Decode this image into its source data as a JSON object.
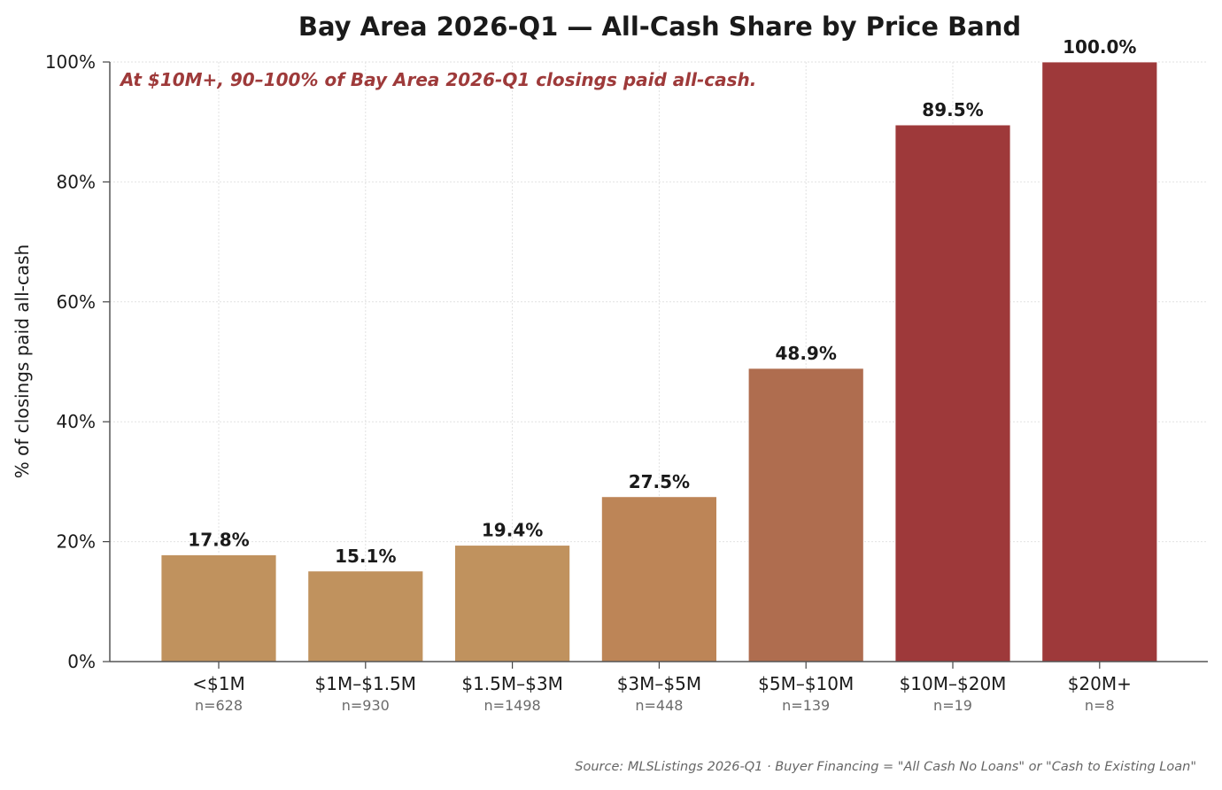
{
  "chart_data": {
    "type": "bar",
    "title": "Bay Area 2026-Q1 — All-Cash Share by Price Band",
    "annotation": "At $10M+, 90–100% of Bay Area 2026-Q1 closings paid all-cash.",
    "ylabel": "% of closings paid all-cash",
    "xlabel": "",
    "ylim": [
      0,
      100
    ],
    "yticks": [
      0,
      20,
      40,
      60,
      80,
      100
    ],
    "ytick_labels": [
      "0%",
      "20%",
      "40%",
      "60%",
      "80%",
      "100%"
    ],
    "grid": true,
    "categories": [
      "<$1M",
      "$1M–$1.5M",
      "$1.5M–$3M",
      "$3M–$5M",
      "$5M–$10M",
      "$10M–$20M",
      "$20M+"
    ],
    "counts": [
      "n=628",
      "n=930",
      "n=1498",
      "n=448",
      "n=139",
      "n=19",
      "n=8"
    ],
    "values": [
      17.8,
      15.1,
      19.4,
      27.5,
      48.9,
      89.5,
      100.0
    ],
    "value_labels": [
      "17.8%",
      "15.1%",
      "19.4%",
      "27.5%",
      "48.9%",
      "89.5%",
      "100.0%"
    ],
    "colors": [
      "#c0925e",
      "#c0925e",
      "#c0925e",
      "#bd8557",
      "#af6d4f",
      "#9e393a",
      "#9e393a"
    ],
    "source": "Source: MLSListings 2026-Q1 · Buyer Financing = \"All Cash No Loans\" or \"Cash to Existing Loan\""
  }
}
